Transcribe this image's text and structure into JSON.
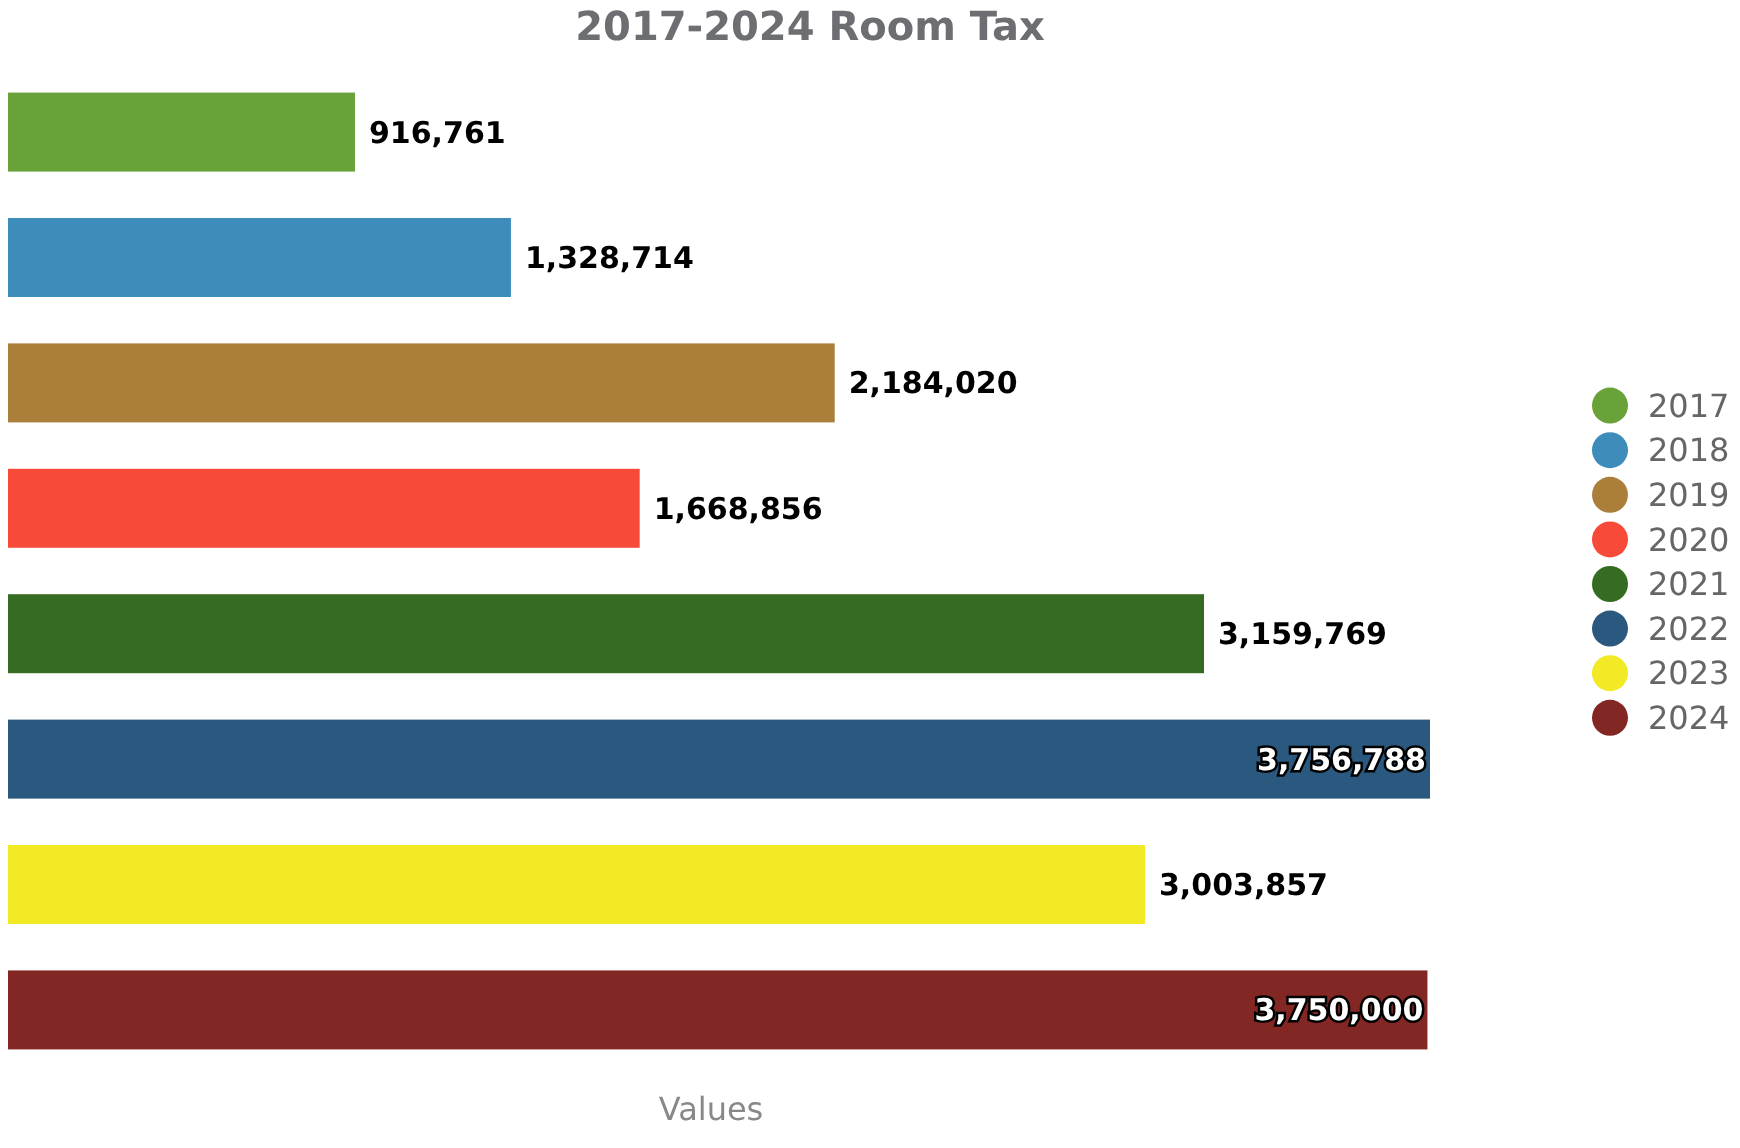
{
  "chart_data": {
    "type": "bar",
    "orientation": "horizontal",
    "stacked": true,
    "title": "2017-2024 Room Tax",
    "xlabel": "Values",
    "categories": [
      null,
      null,
      null,
      null,
      null,
      null,
      null,
      null
    ],
    "legend": "right",
    "grid": false,
    "tick_labels": false,
    "series": [
      {
        "name": "2017",
        "color": "#6aa23a",
        "values": [
          916761,
          null,
          null,
          null,
          null,
          null,
          null,
          null
        ],
        "value_labels": [
          "916,761",
          null,
          null,
          null,
          null,
          null,
          null,
          null
        ]
      },
      {
        "name": "2018",
        "color": "#3d8cb9",
        "values": [
          null,
          1328714,
          null,
          null,
          null,
          null,
          null,
          null
        ],
        "value_labels": [
          null,
          "1,328,714",
          null,
          null,
          null,
          null,
          null,
          null
        ]
      },
      {
        "name": "2019",
        "color": "#ab7f3a",
        "values": [
          null,
          null,
          2184020,
          null,
          null,
          null,
          null,
          null
        ],
        "value_labels": [
          null,
          null,
          "2,184,020",
          null,
          null,
          null,
          null,
          null
        ]
      },
      {
        "name": "2020",
        "color": "#f84a38",
        "values": [
          null,
          null,
          null,
          1668856,
          null,
          null,
          null,
          null
        ],
        "value_labels": [
          null,
          null,
          null,
          "1,668,856",
          null,
          null,
          null,
          null
        ]
      },
      {
        "name": "2021",
        "color": "#366b22",
        "values": [
          null,
          null,
          null,
          null,
          3159769,
          null,
          null,
          null
        ],
        "value_labels": [
          null,
          null,
          null,
          null,
          "3,159,769",
          null,
          null,
          null
        ]
      },
      {
        "name": "2022",
        "color": "#2a587f",
        "values": [
          null,
          null,
          null,
          null,
          null,
          3756788,
          null,
          null
        ],
        "value_labels": [
          null,
          null,
          null,
          null,
          null,
          "3,756,788",
          null,
          null
        ]
      },
      {
        "name": "2023",
        "color": "#f1ea24",
        "values": [
          null,
          null,
          null,
          null,
          null,
          null,
          3003857,
          null
        ],
        "value_labels": [
          null,
          null,
          null,
          null,
          null,
          null,
          "3,003,857",
          null
        ]
      },
      {
        "name": "2024",
        "color": "#822724",
        "values": [
          null,
          null,
          null,
          null,
          null,
          null,
          null,
          3750000
        ],
        "value_labels": [
          null,
          null,
          null,
          null,
          null,
          null,
          null,
          "3,750,000"
        ]
      }
    ]
  }
}
